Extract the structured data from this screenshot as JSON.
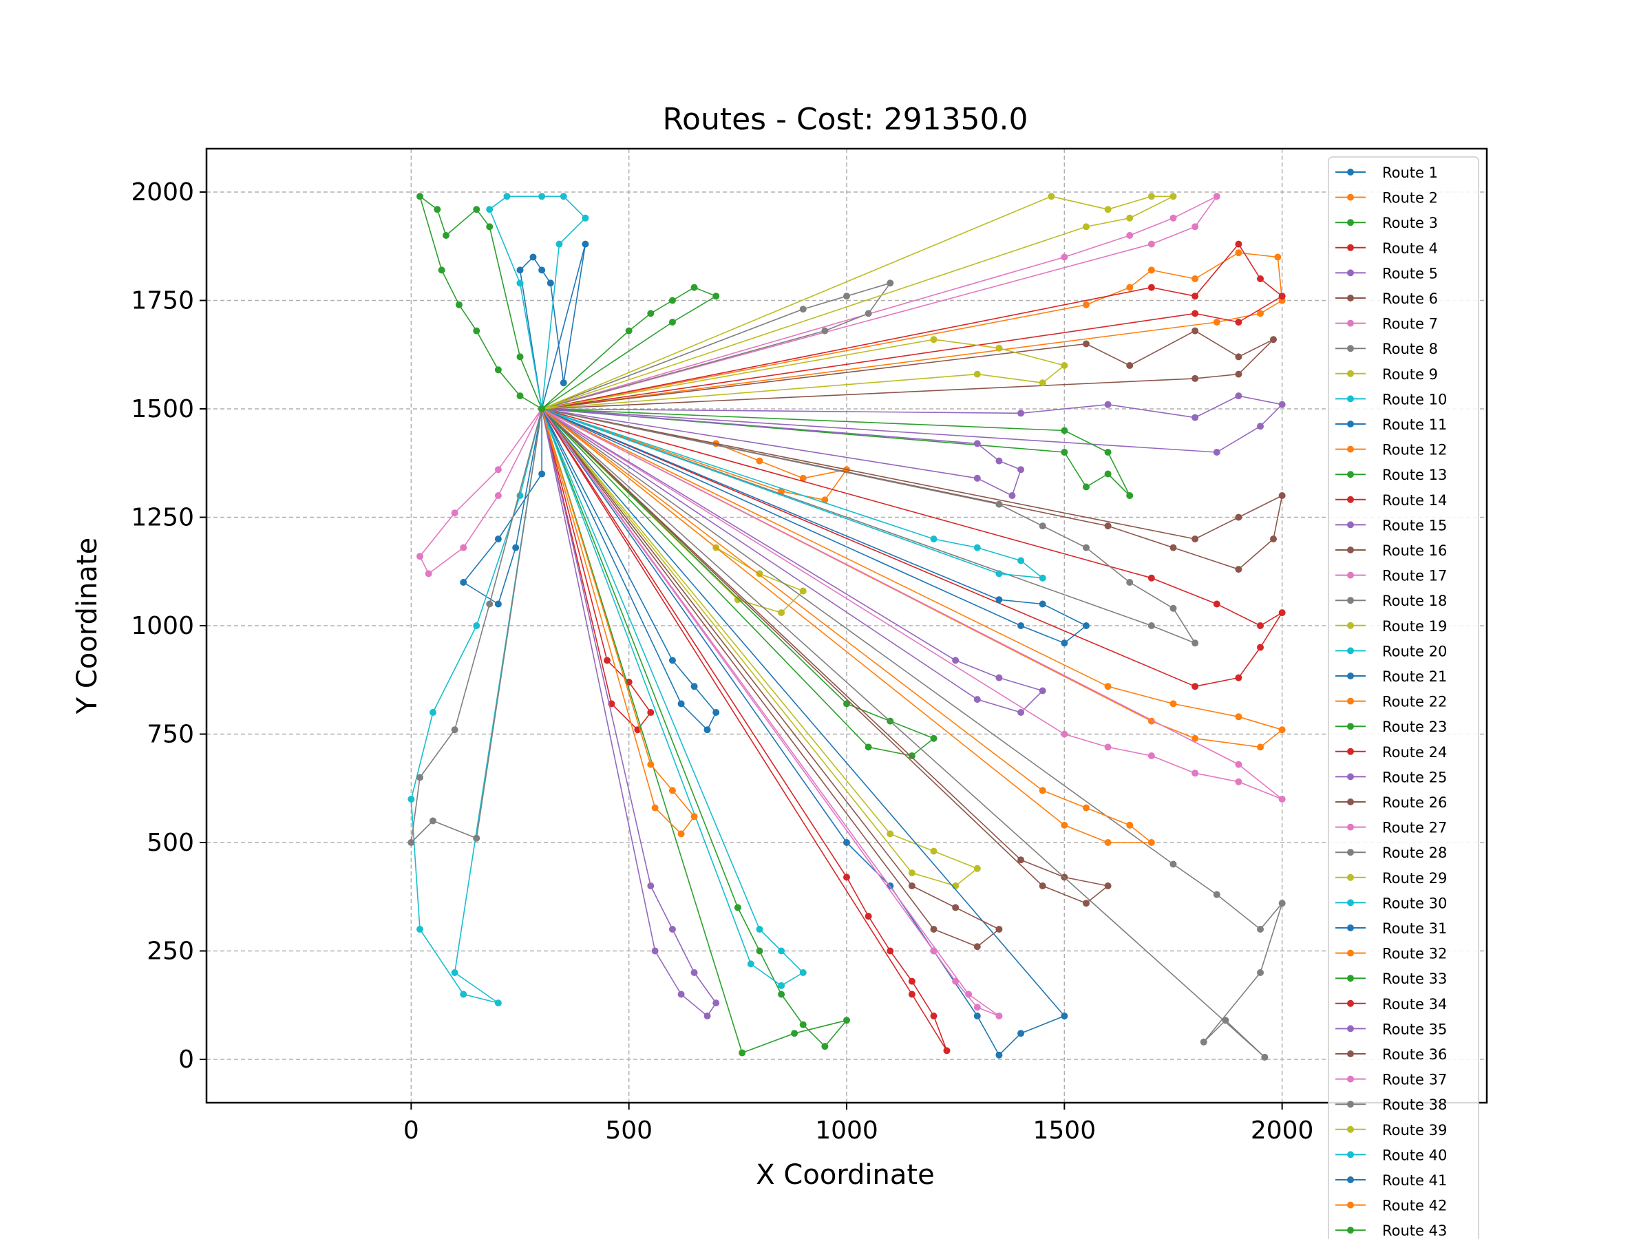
{
  "chart_data": {
    "type": "line",
    "title": "Routes - Cost: 291350.0",
    "xlabel": "X Coordinate",
    "ylabel": "Y Coordinate",
    "xlim": [
      -470,
      2470
    ],
    "ylim": [
      -100,
      2100
    ],
    "xticks": [
      0,
      500,
      1000,
      1500,
      2000
    ],
    "yticks": [
      0,
      250,
      500,
      750,
      1000,
      1250,
      1500,
      1750,
      2000
    ],
    "grid": true,
    "legend_position": "right",
    "depot": [
      300,
      1500
    ],
    "series": [
      {
        "name": "Route 1",
        "color": "#1f77b4",
        "x": [
          300,
          250,
          280,
          300,
          320,
          350,
          400,
          300
        ],
        "y": [
          1500,
          1820,
          1850,
          1820,
          1790,
          1560,
          1880,
          1500
        ]
      },
      {
        "name": "Route 2",
        "color": "#ff7f0e",
        "x": [
          300,
          1550,
          1650,
          1700,
          1800,
          1900,
          1990,
          2000,
          1950,
          1850,
          300
        ],
        "y": [
          1500,
          1740,
          1780,
          1820,
          1800,
          1860,
          1850,
          1750,
          1720,
          1700,
          1500
        ]
      },
      {
        "name": "Route 3",
        "color": "#2ca02c",
        "x": [
          300,
          250,
          200,
          150,
          110,
          70,
          20,
          60,
          80,
          150,
          180,
          250,
          300
        ],
        "y": [
          1500,
          1530,
          1590,
          1680,
          1740,
          1820,
          1990,
          1960,
          1900,
          1960,
          1920,
          1620,
          1500
        ]
      },
      {
        "name": "Route 4",
        "color": "#d62728",
        "x": [
          300,
          1700,
          1800,
          1900,
          1950,
          2000,
          1900,
          1800,
          300
        ],
        "y": [
          1500,
          1780,
          1760,
          1880,
          1800,
          1760,
          1700,
          1720,
          1500
        ]
      },
      {
        "name": "Route 5",
        "color": "#9467bd",
        "x": [
          300,
          1400,
          1600,
          1800,
          1900,
          2000,
          1950,
          1850,
          300
        ],
        "y": [
          1500,
          1490,
          1510,
          1480,
          1530,
          1510,
          1460,
          1400,
          1500
        ]
      },
      {
        "name": "Route 6",
        "color": "#8c564b",
        "x": [
          300,
          1550,
          1650,
          1800,
          1900,
          1980,
          1900,
          1800,
          300
        ],
        "y": [
          1500,
          1650,
          1600,
          1680,
          1620,
          1660,
          1580,
          1570,
          1500
        ]
      },
      {
        "name": "Route 7",
        "color": "#e377c2",
        "x": [
          300,
          1500,
          1650,
          1750,
          1850,
          1800,
          1700,
          300
        ],
        "y": [
          1500,
          1850,
          1900,
          1940,
          1990,
          1920,
          1880,
          1500
        ]
      },
      {
        "name": "Route 8",
        "color": "#7f7f7f",
        "x": [
          300,
          900,
          1000,
          1100,
          1050,
          950,
          300
        ],
        "y": [
          1500,
          1730,
          1760,
          1790,
          1720,
          1680,
          1500
        ]
      },
      {
        "name": "Route 9",
        "color": "#bcbd22",
        "x": [
          300,
          1470,
          1600,
          1700,
          1750,
          1650,
          1550,
          300
        ],
        "y": [
          1500,
          1990,
          1960,
          1990,
          1990,
          1940,
          1920,
          1500
        ]
      },
      {
        "name": "Route 10",
        "color": "#17becf",
        "x": [
          300,
          250,
          180,
          220,
          300,
          350,
          400,
          340,
          300
        ],
        "y": [
          1500,
          1790,
          1960,
          1990,
          1990,
          1990,
          1940,
          1880,
          1500
        ]
      },
      {
        "name": "Route 11",
        "color": "#1f77b4",
        "x": [
          300,
          300,
          200,
          120,
          200,
          240,
          300
        ],
        "y": [
          1500,
          1350,
          1200,
          1100,
          1050,
          1180,
          1500
        ]
      },
      {
        "name": "Route 12",
        "color": "#ff7f0e",
        "x": [
          300,
          700,
          800,
          900,
          1000,
          950,
          850,
          300
        ],
        "y": [
          1500,
          1420,
          1380,
          1340,
          1360,
          1290,
          1310,
          1500
        ]
      },
      {
        "name": "Route 13",
        "color": "#2ca02c",
        "x": [
          300,
          1500,
          1550,
          1600,
          1650,
          1600,
          1500,
          300
        ],
        "y": [
          1500,
          1400,
          1320,
          1350,
          1300,
          1400,
          1450,
          1500
        ]
      },
      {
        "name": "Route 14",
        "color": "#d62728",
        "x": [
          300,
          1700,
          1850,
          1950,
          2000,
          1950,
          1900,
          1800,
          300
        ],
        "y": [
          1500,
          1110,
          1050,
          1000,
          1030,
          950,
          880,
          860,
          1500
        ]
      },
      {
        "name": "Route 15",
        "color": "#9467bd",
        "x": [
          300,
          1300,
          1350,
          1400,
          1380,
          1300,
          300
        ],
        "y": [
          1500,
          1420,
          1380,
          1360,
          1300,
          1340,
          1500
        ]
      },
      {
        "name": "Route 16",
        "color": "#8c564b",
        "x": [
          300,
          1600,
          1750,
          1900,
          1980,
          2000,
          1900,
          1800,
          300
        ],
        "y": [
          1500,
          1230,
          1180,
          1130,
          1200,
          1300,
          1250,
          1200,
          1500
        ]
      },
      {
        "name": "Route 17",
        "color": "#e377c2",
        "x": [
          300,
          200,
          100,
          20,
          40,
          120,
          200,
          300
        ],
        "y": [
          1500,
          1360,
          1260,
          1160,
          1120,
          1180,
          1300,
          1500
        ]
      },
      {
        "name": "Route 18",
        "color": "#7f7f7f",
        "x": [
          300,
          1350,
          1450,
          1550,
          1650,
          1750,
          1800,
          1700,
          300
        ],
        "y": [
          1500,
          1280,
          1230,
          1180,
          1100,
          1040,
          960,
          1000,
          1500
        ]
      },
      {
        "name": "Route 19",
        "color": "#bcbd22",
        "x": [
          300,
          700,
          800,
          900,
          850,
          750,
          300
        ],
        "y": [
          1500,
          1180,
          1120,
          1080,
          1030,
          1060,
          1500
        ]
      },
      {
        "name": "Route 20",
        "color": "#17becf",
        "x": [
          300,
          1200,
          1300,
          1400,
          1450,
          1350,
          300
        ],
        "y": [
          1500,
          1200,
          1180,
          1150,
          1110,
          1120,
          1500
        ]
      },
      {
        "name": "Route 21",
        "color": "#1f77b4",
        "x": [
          300,
          1350,
          1450,
          1550,
          1500,
          1400,
          300
        ],
        "y": [
          1500,
          1060,
          1050,
          1000,
          960,
          1000,
          1500
        ]
      },
      {
        "name": "Route 22",
        "color": "#ff7f0e",
        "x": [
          300,
          1600,
          1750,
          1900,
          2000,
          1950,
          1800,
          1700,
          300
        ],
        "y": [
          1500,
          860,
          820,
          790,
          760,
          720,
          740,
          780,
          1500
        ]
      },
      {
        "name": "Route 23",
        "color": "#2ca02c",
        "x": [
          300,
          1000,
          1100,
          1200,
          1150,
          1050,
          300
        ],
        "y": [
          1500,
          820,
          780,
          740,
          700,
          720,
          1500
        ]
      },
      {
        "name": "Route 24",
        "color": "#d62728",
        "x": [
          300,
          450,
          500,
          550,
          520,
          460,
          300
        ],
        "y": [
          1500,
          920,
          870,
          800,
          760,
          820,
          1500
        ]
      },
      {
        "name": "Route 25",
        "color": "#9467bd",
        "x": [
          300,
          1250,
          1350,
          1450,
          1400,
          1300,
          300
        ],
        "y": [
          1500,
          920,
          880,
          850,
          800,
          830,
          1500
        ]
      },
      {
        "name": "Route 26",
        "color": "#8c564b",
        "x": [
          300,
          1400,
          1500,
          1600,
          1550,
          1450,
          300
        ],
        "y": [
          1500,
          460,
          420,
          400,
          360,
          400,
          1500
        ]
      },
      {
        "name": "Route 27",
        "color": "#e377c2",
        "x": [
          300,
          1500,
          1600,
          1700,
          1800,
          1900,
          2000,
          1900,
          300
        ],
        "y": [
          1500,
          750,
          720,
          700,
          660,
          640,
          600,
          680,
          1500
        ]
      },
      {
        "name": "Route 28",
        "color": "#7f7f7f",
        "x": [
          300,
          1750,
          1850,
          1950,
          2000,
          1950,
          1820,
          1870,
          1960,
          300
        ],
        "y": [
          1500,
          450,
          380,
          300,
          360,
          200,
          40,
          90,
          5,
          1500
        ]
      },
      {
        "name": "Route 29",
        "color": "#bcbd22",
        "x": [
          300,
          1100,
          1200,
          1300,
          1250,
          1150,
          300
        ],
        "y": [
          1500,
          520,
          480,
          440,
          400,
          430,
          1500
        ]
      },
      {
        "name": "Route 30",
        "color": "#17becf",
        "x": [
          300,
          250,
          150,
          50,
          0,
          20,
          120,
          200,
          100,
          300
        ],
        "y": [
          1500,
          1300,
          1000,
          800,
          600,
          300,
          150,
          130,
          200,
          1500
        ]
      },
      {
        "name": "Route 31",
        "color": "#1f77b4",
        "x": [
          300,
          1000,
          1100,
          1200,
          1300,
          1350,
          1400,
          1500,
          300
        ],
        "y": [
          1500,
          500,
          400,
          250,
          100,
          10,
          60,
          100,
          1500
        ]
      },
      {
        "name": "Route 32",
        "color": "#ff7f0e",
        "x": [
          300,
          1450,
          1550,
          1650,
          1700,
          1600,
          1500,
          300
        ],
        "y": [
          1500,
          620,
          580,
          540,
          500,
          500,
          540,
          1500
        ]
      },
      {
        "name": "Route 33",
        "color": "#2ca02c",
        "x": [
          300,
          750,
          800,
          850,
          900,
          950,
          1000,
          880,
          760,
          300
        ],
        "y": [
          1500,
          350,
          250,
          150,
          80,
          30,
          90,
          60,
          15,
          1500
        ]
      },
      {
        "name": "Route 34",
        "color": "#d62728",
        "x": [
          300,
          1000,
          1050,
          1100,
          1150,
          1200,
          1230,
          1150,
          300
        ],
        "y": [
          1500,
          420,
          330,
          250,
          180,
          100,
          20,
          150,
          1500
        ]
      },
      {
        "name": "Route 35",
        "color": "#9467bd",
        "x": [
          300,
          550,
          600,
          650,
          700,
          680,
          620,
          560,
          300
        ],
        "y": [
          1500,
          400,
          300,
          200,
          130,
          100,
          150,
          250,
          1500
        ]
      },
      {
        "name": "Route 36",
        "color": "#8c564b",
        "x": [
          300,
          1150,
          1250,
          1350,
          1300,
          1200,
          300
        ],
        "y": [
          1500,
          400,
          350,
          300,
          260,
          300,
          1500
        ]
      },
      {
        "name": "Route 37",
        "color": "#e377c2",
        "x": [
          300,
          1200,
          1250,
          1300,
          1350,
          1280,
          300
        ],
        "y": [
          1500,
          250,
          180,
          120,
          100,
          150,
          1500
        ]
      },
      {
        "name": "Route 38",
        "color": "#7f7f7f",
        "x": [
          300,
          180,
          100,
          20,
          0,
          50,
          150,
          300
        ],
        "y": [
          1500,
          1050,
          760,
          650,
          500,
          550,
          510,
          1500
        ]
      },
      {
        "name": "Route 39",
        "color": "#bcbd22",
        "x": [
          300,
          1200,
          1350,
          1500,
          1450,
          1300,
          300
        ],
        "y": [
          1500,
          1660,
          1640,
          1600,
          1560,
          1580,
          1500
        ]
      },
      {
        "name": "Route 40",
        "color": "#17becf",
        "x": [
          300,
          800,
          850,
          900,
          850,
          780,
          300
        ],
        "y": [
          1500,
          300,
          250,
          200,
          170,
          220,
          1500
        ]
      },
      {
        "name": "Route 41",
        "color": "#1f77b4",
        "x": [
          300,
          600,
          650,
          700,
          680,
          620,
          300
        ],
        "y": [
          1500,
          920,
          860,
          800,
          760,
          820,
          1500
        ]
      },
      {
        "name": "Route 42",
        "color": "#ff7f0e",
        "x": [
          300,
          550,
          600,
          650,
          620,
          560,
          300
        ],
        "y": [
          1500,
          680,
          620,
          560,
          520,
          580,
          1500
        ]
      },
      {
        "name": "Route 43",
        "color": "#2ca02c",
        "x": [
          300,
          500,
          550,
          600,
          650,
          700,
          600,
          300
        ],
        "y": [
          1500,
          1680,
          1720,
          1750,
          1780,
          1760,
          1700,
          1500
        ]
      }
    ]
  }
}
